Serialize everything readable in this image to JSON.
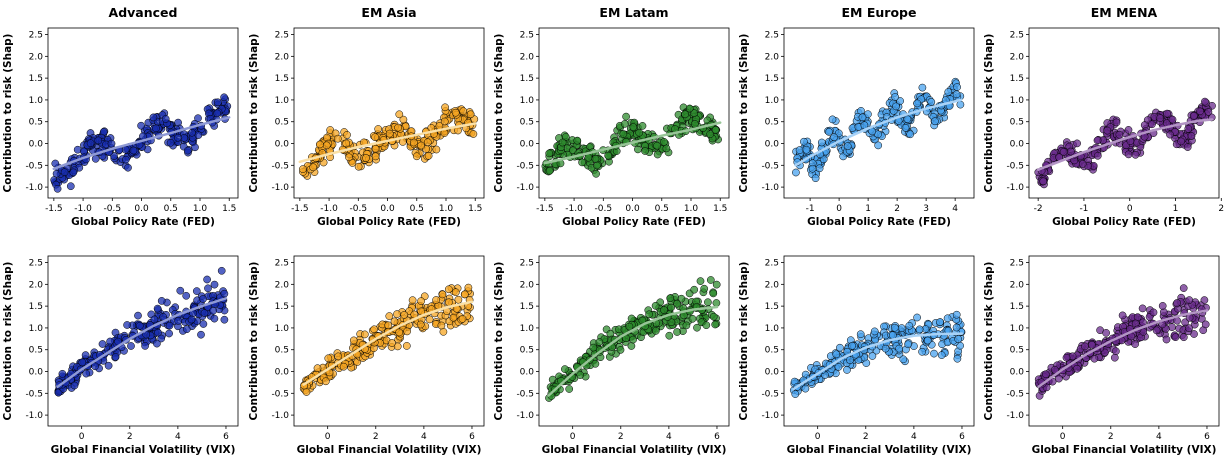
{
  "chart_data": {
    "type": "scatter",
    "layout": "2 rows x 5 columns of scatter plots with fitted trend curves",
    "columns": [
      {
        "title": "EM Asia",
        "color": "#f5a623",
        "fit_color": "#fae0a6"
      }
    ],
    "columns_all": [
      {
        "title": "Advanced",
        "color": "#1a2fb0",
        "fit_color": "#8f9ad6"
      },
      {
        "title": "EM Asia",
        "color": "#f5a623",
        "fit_color": "#fae0a6"
      },
      {
        "title": "EM Latam",
        "color": "#2e8b2e",
        "fit_color": "#97c597"
      },
      {
        "title": "EM Europe",
        "color": "#4aa3ef",
        "fit_color": "#a8d2f7"
      },
      {
        "title": "EM MENA",
        "color": "#6a2b8c",
        "fit_color": "#b394c5"
      }
    ],
    "rows": [
      {
        "xlabel": "Global Policy Rate (FED)",
        "ylabel": "Contribution to risk (Shap)",
        "ylim": [
          -1.25,
          2.65
        ],
        "yticks": [
          "-1.0",
          "-0.5",
          "0.0",
          "0.5",
          "1.0",
          "1.5",
          "2.0",
          "2.5"
        ],
        "panels": [
          {
            "xlim": [
              -1.6,
              1.65
            ],
            "xticks": [
              "-1.5",
              "-1.0",
              "-0.5",
              "0.0",
              "0.5",
              "1.0",
              "1.5"
            ],
            "fit": [
              [
                -1.5,
                -0.58
              ],
              [
                -1.0,
                -0.33
              ],
              [
                -0.5,
                -0.12
              ],
              [
                0.0,
                0.06
              ],
              [
                0.5,
                0.24
              ],
              [
                1.0,
                0.43
              ],
              [
                1.5,
                0.6
              ]
            ]
          },
          {
            "xlim": [
              -1.6,
              1.65
            ],
            "xticks": [
              "-1.5",
              "-1.0",
              "-0.5",
              "0.0",
              "0.5",
              "1.0",
              "1.5"
            ],
            "fit": [
              [
                -1.5,
                -0.42
              ],
              [
                -1.0,
                -0.24
              ],
              [
                -0.5,
                -0.08
              ],
              [
                0.0,
                0.06
              ],
              [
                0.5,
                0.2
              ],
              [
                1.0,
                0.34
              ],
              [
                1.5,
                0.46
              ]
            ]
          },
          {
            "xlim": [
              -1.6,
              1.65
            ],
            "xticks": [
              "-1.5",
              "-1.0",
              "-0.5",
              "0.0",
              "0.5",
              "1.0",
              "1.5"
            ],
            "fit": [
              [
                -1.5,
                -0.45
              ],
              [
                -1.0,
                -0.3
              ],
              [
                -0.5,
                -0.14
              ],
              [
                0.0,
                0.02
              ],
              [
                0.5,
                0.18
              ],
              [
                1.0,
                0.32
              ],
              [
                1.5,
                0.48
              ]
            ]
          },
          {
            "xlim": [
              -1.9,
              4.65
            ],
            "xticks": [
              "-1",
              "0",
              "1",
              "2",
              "3",
              "4"
            ],
            "fit": [
              [
                -1.5,
                -0.5
              ],
              [
                -1.0,
                -0.3
              ],
              [
                0.0,
                0.05
              ],
              [
                1.0,
                0.35
              ],
              [
                2.0,
                0.6
              ],
              [
                3.0,
                0.8
              ],
              [
                4.2,
                1.0
              ]
            ]
          },
          {
            "xlim": [
              -2.2,
              1.95
            ],
            "xticks": [
              "-2",
              "-1",
              "0",
              "1",
              "2"
            ],
            "fit": [
              [
                -2.0,
                -0.6
              ],
              [
                -1.5,
                -0.4
              ],
              [
                -1.0,
                -0.2
              ],
              [
                -0.5,
                -0.02
              ],
              [
                0.0,
                0.15
              ],
              [
                0.5,
                0.3
              ],
              [
                1.0,
                0.42
              ],
              [
                1.5,
                0.52
              ],
              [
                1.8,
                0.55
              ]
            ]
          }
        ]
      },
      {
        "xlabel": "Global Financial Volatility (VIX)",
        "ylabel": "Contribution to risk (Shap)",
        "ylim": [
          -1.25,
          2.65
        ],
        "yticks": [
          "-1.0",
          "-0.5",
          "0.0",
          "0.5",
          "1.0",
          "1.5",
          "2.0",
          "2.5"
        ],
        "panels": [
          {
            "xlim": [
              -1.4,
              6.5
            ],
            "xticks": [
              "0",
              "2",
              "4",
              "6"
            ],
            "fit": [
              [
                -1.0,
                -0.35
              ],
              [
                0.0,
                0.05
              ],
              [
                1.0,
                0.4
              ],
              [
                2.0,
                0.75
              ],
              [
                3.0,
                1.05
              ],
              [
                4.0,
                1.3
              ],
              [
                5.0,
                1.5
              ],
              [
                6.0,
                1.68
              ]
            ]
          },
          {
            "xlim": [
              -1.4,
              6.5
            ],
            "xticks": [
              "0",
              "2",
              "4",
              "6"
            ],
            "fit": [
              [
                -1.0,
                -0.3
              ],
              [
                0.0,
                0.05
              ],
              [
                1.0,
                0.4
              ],
              [
                2.0,
                0.75
              ],
              [
                3.0,
                1.05
              ],
              [
                4.0,
                1.3
              ],
              [
                5.0,
                1.48
              ],
              [
                6.0,
                1.6
              ]
            ]
          },
          {
            "xlim": [
              -1.4,
              6.5
            ],
            "xticks": [
              "0",
              "2",
              "4",
              "6"
            ],
            "fit": [
              [
                -1.0,
                -0.55
              ],
              [
                0.0,
                -0.05
              ],
              [
                1.0,
                0.4
              ],
              [
                2.0,
                0.8
              ],
              [
                3.0,
                1.1
              ],
              [
                4.0,
                1.3
              ],
              [
                5.0,
                1.42
              ],
              [
                6.0,
                1.48
              ]
            ]
          },
          {
            "xlim": [
              -1.4,
              6.5
            ],
            "xticks": [
              "0",
              "2",
              "4",
              "6"
            ],
            "fit": [
              [
                -1.0,
                -0.4
              ],
              [
                0.0,
                -0.05
              ],
              [
                1.0,
                0.3
              ],
              [
                2.0,
                0.55
              ],
              [
                3.0,
                0.72
              ],
              [
                4.0,
                0.82
              ],
              [
                5.0,
                0.86
              ],
              [
                6.0,
                0.87
              ]
            ]
          },
          {
            "xlim": [
              -1.4,
              6.5
            ],
            "xticks": [
              "0",
              "2",
              "4",
              "6"
            ],
            "fit": [
              [
                -1.0,
                -0.35
              ],
              [
                0.0,
                0.05
              ],
              [
                1.0,
                0.4
              ],
              [
                2.0,
                0.7
              ],
              [
                3.0,
                0.95
              ],
              [
                4.0,
                1.15
              ],
              [
                5.0,
                1.3
              ],
              [
                6.0,
                1.4
              ]
            ]
          }
        ]
      }
    ]
  }
}
